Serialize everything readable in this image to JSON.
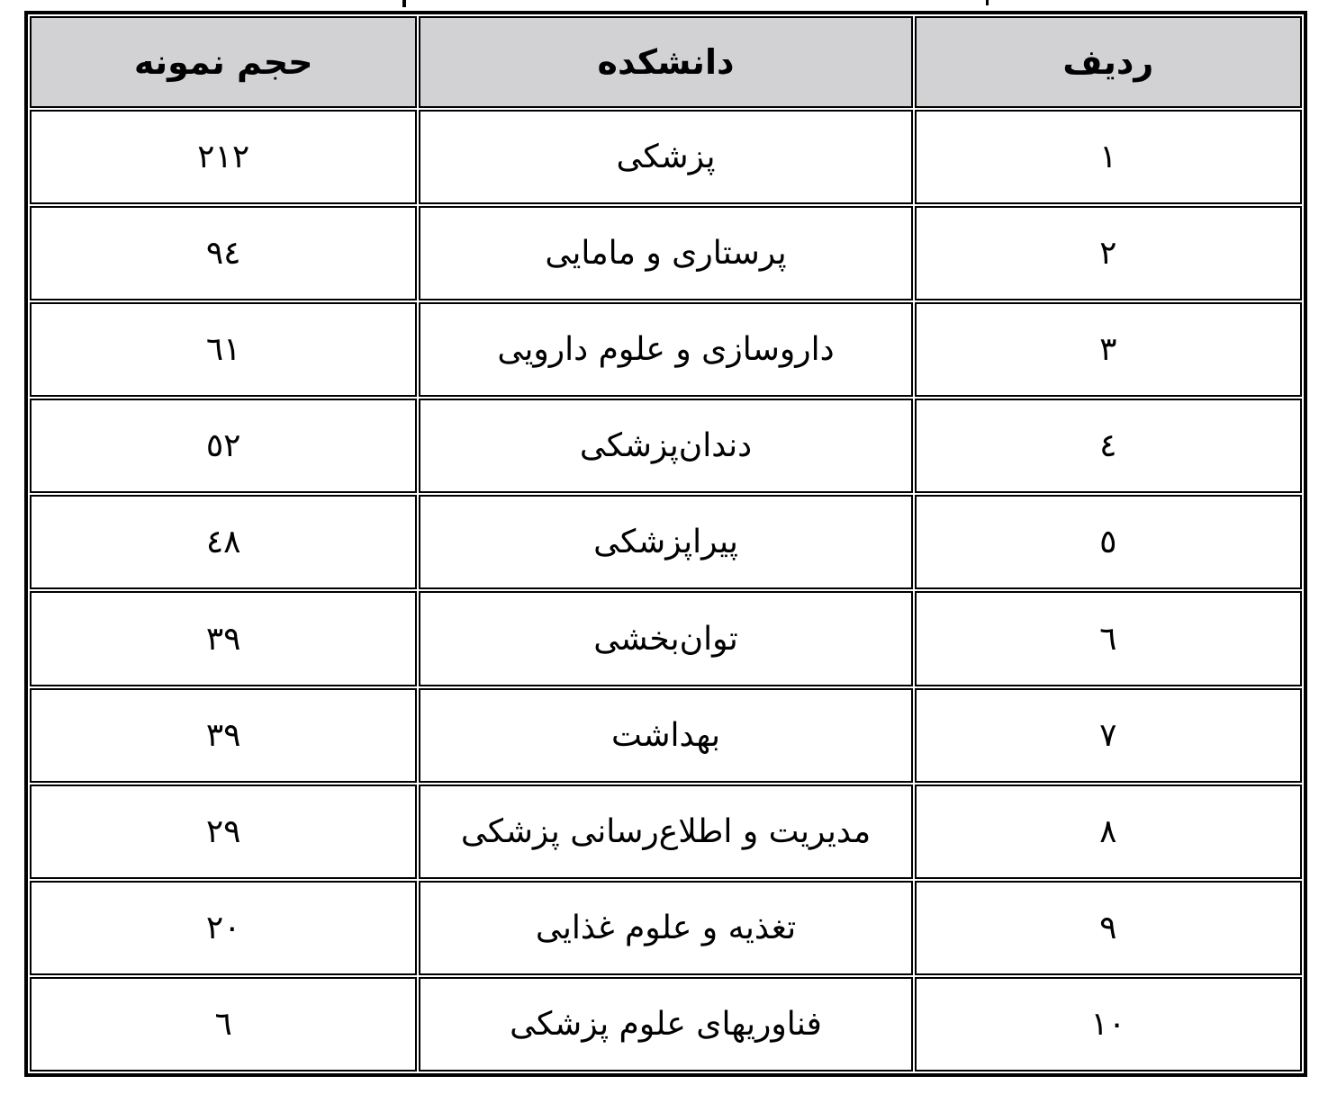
{
  "table": {
    "headers": {
      "radif": "ردیف",
      "daneshkadeh": "دانشکده",
      "hajm_nemooneh": "حجم نمونه"
    },
    "rows": [
      [
        "١",
        "پزشکی",
        "٢١٢"
      ],
      [
        "٢",
        "پرستاری و مامایی",
        "٩٤"
      ],
      [
        "٣",
        "داروسازی و علوم دارویی",
        "٦١"
      ],
      [
        "٤",
        "دندان‌پزشکی",
        "٥٢"
      ],
      [
        "٥",
        "پیراپزشکی",
        "٤٨"
      ],
      [
        "٦",
        "توان‌بخشی",
        "٣٩"
      ],
      [
        "٧",
        "بهداشت",
        "٣٩"
      ],
      [
        "٨",
        "مدیریت و اطلاع‌رسانی پزشکی",
        "٢٩"
      ],
      [
        "٩",
        "تغذیه و علوم غذایی",
        "٢٠"
      ],
      [
        "١٠",
        "فناوریهای علوم پزشکی",
        "٦"
      ]
    ]
  },
  "colors": {
    "header_bg": "#d2d2d4",
    "border": "#000000"
  }
}
